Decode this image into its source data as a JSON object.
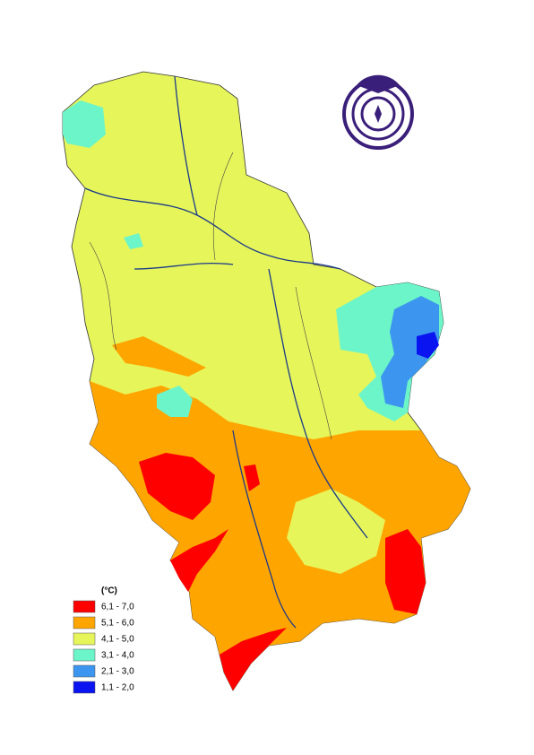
{
  "legend": {
    "unit": "(°C)",
    "items": [
      {
        "label": "6,1 - 7,0",
        "color": "#ff0000"
      },
      {
        "label": "5,1 - 6,0",
        "color": "#ffa500"
      },
      {
        "label": "4,1 - 5,0",
        "color": "#e6f55a"
      },
      {
        "label": "3,1 - 4,0",
        "color": "#6cf5c8"
      },
      {
        "label": "2,1 - 3,0",
        "color": "#3c96f0"
      },
      {
        "label": "1,1 - 2,0",
        "color": "#0a14f0"
      }
    ]
  }
}
